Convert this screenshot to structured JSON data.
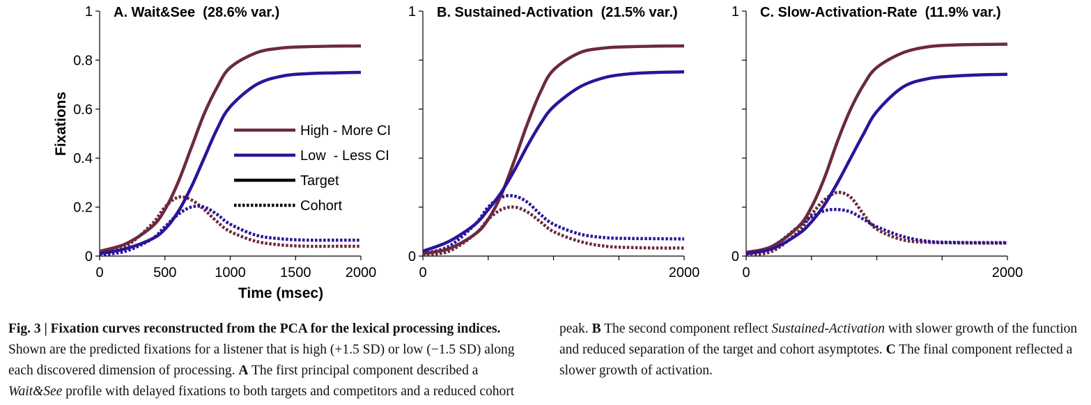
{
  "chart_data": [
    {
      "type": "line",
      "title": "A. Wait&See  (28.6% var.)",
      "xlabel": "Time (msec)",
      "ylabel": "Fixations",
      "xlim": [
        0,
        2000
      ],
      "ylim": [
        0,
        1
      ],
      "xticks": [
        "0",
        "500",
        "1000",
        "1500",
        "2000"
      ],
      "yticks": [
        "0",
        "0.2",
        "0.4",
        "0.6",
        "0.8",
        "1"
      ],
      "legend": {
        "placement": "center",
        "entries": [
          {
            "label": "High - More CI",
            "color": "#6b2a3e",
            "style": "solid"
          },
          {
            "label": "Low  - Less CI",
            "color": "#2c1499",
            "style": "solid"
          },
          {
            "label": "Target",
            "color": "#000000",
            "style": "solid"
          },
          {
            "label": "Cohort",
            "color": "#000000",
            "style": "dotted"
          }
        ]
      },
      "series": [
        {
          "group": "High - More CI",
          "kind": "Target",
          "x": [
            0,
            200,
            400,
            500,
            600,
            700,
            800,
            900,
            1000,
            1200,
            1400,
            1600,
            1800,
            2000
          ],
          "values": [
            0.02,
            0.05,
            0.12,
            0.19,
            0.3,
            0.44,
            0.58,
            0.69,
            0.77,
            0.83,
            0.85,
            0.855,
            0.857,
            0.858
          ]
        },
        {
          "group": "Low  - Less CI",
          "kind": "Target",
          "x": [
            0,
            200,
            400,
            500,
            600,
            700,
            800,
            900,
            1000,
            1200,
            1400,
            1600,
            1800,
            2000
          ],
          "values": [
            0.01,
            0.03,
            0.07,
            0.11,
            0.18,
            0.28,
            0.4,
            0.52,
            0.61,
            0.7,
            0.735,
            0.745,
            0.748,
            0.75
          ]
        },
        {
          "group": "High - More CI",
          "kind": "Cohort",
          "x": [
            0,
            200,
            400,
            500,
            600,
            700,
            800,
            900,
            1000,
            1200,
            1400,
            1600,
            1800,
            2000
          ],
          "values": [
            0.01,
            0.04,
            0.13,
            0.2,
            0.24,
            0.23,
            0.19,
            0.14,
            0.1,
            0.06,
            0.045,
            0.04,
            0.04,
            0.04
          ]
        },
        {
          "group": "Low  - Less CI",
          "kind": "Cohort",
          "x": [
            0,
            200,
            400,
            500,
            600,
            700,
            800,
            900,
            1000,
            1200,
            1400,
            1600,
            1800,
            2000
          ],
          "values": [
            0.005,
            0.02,
            0.07,
            0.12,
            0.17,
            0.2,
            0.2,
            0.17,
            0.13,
            0.085,
            0.07,
            0.065,
            0.065,
            0.065
          ]
        }
      ]
    },
    {
      "type": "line",
      "title": "B. Sustained-Activation  (21.5% var.)",
      "xlim": [
        0,
        2000
      ],
      "ylim": [
        0,
        1
      ],
      "xticks": [
        "0",
        "2000"
      ],
      "yticks": [
        "0",
        "1"
      ],
      "series": [
        {
          "group": "High - More CI",
          "kind": "Target",
          "x": [
            0,
            200,
            400,
            500,
            600,
            700,
            800,
            900,
            1000,
            1200,
            1400,
            1600,
            1800,
            2000
          ],
          "values": [
            0.01,
            0.03,
            0.09,
            0.15,
            0.25,
            0.39,
            0.54,
            0.67,
            0.76,
            0.83,
            0.85,
            0.855,
            0.857,
            0.858
          ]
        },
        {
          "group": "Low  - Less CI",
          "kind": "Target",
          "x": [
            0,
            200,
            400,
            500,
            600,
            700,
            800,
            900,
            1000,
            1200,
            1400,
            1600,
            1800,
            2000
          ],
          "values": [
            0.02,
            0.06,
            0.13,
            0.19,
            0.26,
            0.35,
            0.45,
            0.54,
            0.61,
            0.69,
            0.73,
            0.745,
            0.75,
            0.752
          ]
        },
        {
          "group": "High - More CI",
          "kind": "Cohort",
          "x": [
            0,
            200,
            400,
            500,
            600,
            700,
            800,
            900,
            1000,
            1200,
            1400,
            1600,
            1800,
            2000
          ],
          "values": [
            0.005,
            0.02,
            0.09,
            0.15,
            0.19,
            0.2,
            0.18,
            0.14,
            0.1,
            0.06,
            0.04,
            0.035,
            0.033,
            0.033
          ]
        },
        {
          "group": "Low  - Less CI",
          "kind": "Cohort",
          "x": [
            0,
            200,
            400,
            500,
            600,
            700,
            800,
            900,
            1000,
            1200,
            1400,
            1600,
            1800,
            2000
          ],
          "values": [
            0.01,
            0.04,
            0.13,
            0.2,
            0.24,
            0.245,
            0.22,
            0.17,
            0.13,
            0.09,
            0.075,
            0.072,
            0.071,
            0.07
          ]
        }
      ]
    },
    {
      "type": "line",
      "title": "C. Slow-Activation-Rate  (11.9% var.)",
      "xlim": [
        0,
        2000
      ],
      "ylim": [
        0,
        1
      ],
      "xticks": [
        "0",
        "2000"
      ],
      "yticks": [
        "0",
        "1"
      ],
      "series": [
        {
          "group": "High - More CI",
          "kind": "Target",
          "x": [
            0,
            200,
            400,
            500,
            600,
            700,
            800,
            900,
            1000,
            1200,
            1400,
            1600,
            1800,
            2000
          ],
          "values": [
            0.015,
            0.04,
            0.12,
            0.2,
            0.32,
            0.47,
            0.6,
            0.7,
            0.77,
            0.83,
            0.855,
            0.862,
            0.864,
            0.865
          ]
        },
        {
          "group": "Low  - Less CI",
          "kind": "Target",
          "x": [
            0,
            200,
            400,
            500,
            600,
            700,
            800,
            900,
            1000,
            1200,
            1400,
            1600,
            1800,
            2000
          ],
          "values": [
            0.01,
            0.03,
            0.09,
            0.14,
            0.21,
            0.3,
            0.4,
            0.5,
            0.59,
            0.69,
            0.725,
            0.735,
            0.74,
            0.742
          ]
        },
        {
          "group": "High - More CI",
          "kind": "Cohort",
          "x": [
            0,
            200,
            400,
            500,
            600,
            700,
            800,
            900,
            1000,
            1200,
            1400,
            1600,
            1800,
            2000
          ],
          "values": [
            0.005,
            0.02,
            0.1,
            0.17,
            0.23,
            0.26,
            0.24,
            0.17,
            0.11,
            0.066,
            0.056,
            0.054,
            0.053,
            0.053
          ]
        },
        {
          "group": "Low  - Less CI",
          "kind": "Cohort",
          "x": [
            0,
            200,
            400,
            500,
            600,
            700,
            800,
            900,
            1000,
            1200,
            1400,
            1600,
            1800,
            2000
          ],
          "values": [
            0.01,
            0.04,
            0.12,
            0.16,
            0.185,
            0.19,
            0.18,
            0.15,
            0.12,
            0.08,
            0.06,
            0.056,
            0.055,
            0.055
          ]
        }
      ]
    }
  ],
  "colors": {
    "high": "#6b2a3e",
    "low": "#2c1499",
    "axis": "#000000"
  },
  "caption": {
    "label": "Fig. 3 | Fixation curves reconstructed from the PCA for the lexical processing indices.",
    "t1": " Shown are the predicted fixations for a listener that is high (+1.5 SD) or low (−1.5 SD) along each discovered dimension of processing. ",
    "a": "A",
    "t2": " The first principal component described a ",
    "i1": "Wait&See",
    "t3": " profile with delayed fixations to both targets and competitors and a reduced cohort peak. ",
    "b": "B",
    "t4": " The second component reflect ",
    "i2": "Sustained-Activation",
    "t5": " with slower growth of the function and reduced separation of the target and cohort asymptotes. ",
    "c": "C",
    "t6": " The final component reflected a slower growth of activation."
  }
}
